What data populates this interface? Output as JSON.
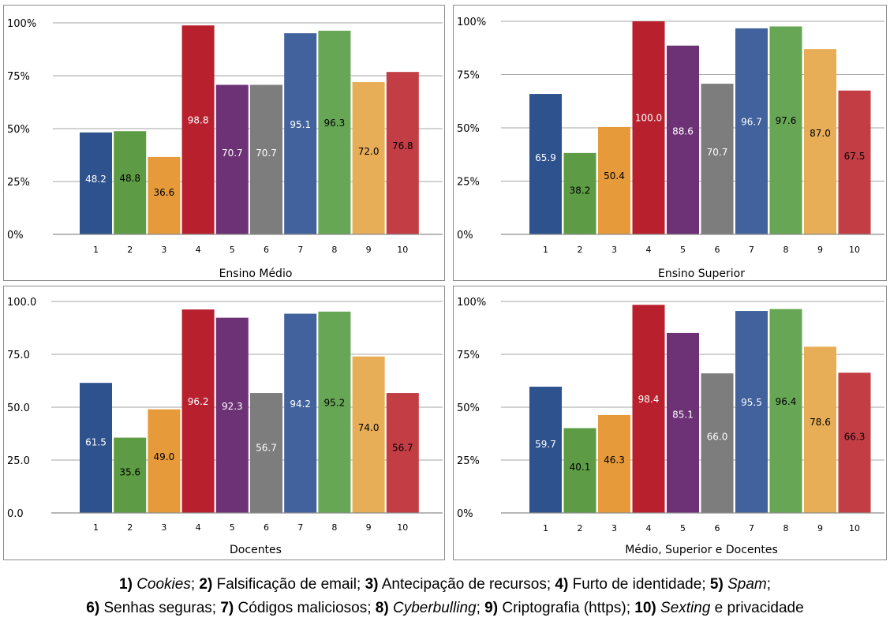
{
  "chart_data": [
    {
      "type": "bar",
      "title": "Ensino Médio",
      "categories": [
        "1",
        "2",
        "3",
        "4",
        "5",
        "6",
        "7",
        "8",
        "9",
        "10"
      ],
      "values": [
        48.2,
        48.8,
        36.6,
        98.8,
        70.7,
        70.7,
        95.1,
        96.3,
        72.0,
        76.8
      ],
      "labels": [
        "48.2",
        "48.8",
        "36.6",
        "98.8",
        "70.7",
        "70.7",
        "95.1",
        "96.3",
        "72.0",
        "76.8"
      ],
      "yticks": [
        "0%",
        "25%",
        "50%",
        "75%",
        "100%"
      ],
      "ylim": [
        0,
        100
      ],
      "grid": true
    },
    {
      "type": "bar",
      "title": "Ensino Superior",
      "categories": [
        "1",
        "2",
        "3",
        "4",
        "5",
        "6",
        "7",
        "8",
        "9",
        "10"
      ],
      "values": [
        65.9,
        38.2,
        50.4,
        100.0,
        88.6,
        70.7,
        96.7,
        97.6,
        87.0,
        67.5
      ],
      "labels": [
        "65.9",
        "38.2",
        "50.4",
        "100.0",
        "88.6",
        "70.7",
        "96.7",
        "97.6",
        "87.0",
        "67.5"
      ],
      "yticks": [
        "0%",
        "25%",
        "50%",
        "75%",
        "100%"
      ],
      "ylim": [
        0,
        100
      ],
      "grid": true
    },
    {
      "type": "bar",
      "title": "Docentes",
      "categories": [
        "1",
        "2",
        "3",
        "4",
        "5",
        "6",
        "7",
        "8",
        "9",
        "10"
      ],
      "values": [
        61.5,
        35.6,
        49.0,
        96.2,
        92.3,
        56.7,
        94.2,
        95.2,
        74.0,
        56.7
      ],
      "labels": [
        "61.5",
        "35.6",
        "49.0",
        "96.2",
        "92.3",
        "56.7",
        "94.2",
        "95.2",
        "74.0",
        "56.7"
      ],
      "yticks": [
        "0.0",
        "25.0",
        "50.0",
        "75.0",
        "100.0"
      ],
      "ylim": [
        0,
        100
      ],
      "grid": true
    },
    {
      "type": "bar",
      "title": "Médio, Superior e Docentes",
      "categories": [
        "1",
        "2",
        "3",
        "4",
        "5",
        "6",
        "7",
        "8",
        "9",
        "10"
      ],
      "values": [
        59.7,
        40.1,
        46.3,
        98.4,
        85.1,
        66.0,
        95.5,
        96.4,
        78.6,
        66.3
      ],
      "labels": [
        "59.7",
        "40.1",
        "46.3",
        "98.4",
        "85.1",
        "66.0",
        "95.5",
        "96.4",
        "78.6",
        "66.3"
      ],
      "yticks": [
        "0%",
        "25%",
        "50%",
        "75%",
        "100%"
      ],
      "ylim": [
        0,
        100
      ],
      "grid": true
    }
  ],
  "colors": [
    "#2e528e",
    "#5d9c44",
    "#e69a3a",
    "#b8202e",
    "#6d3276",
    "#7d7d7d",
    "#41629d",
    "#66a655",
    "#e8ae57",
    "#c23d44"
  ],
  "caption": {
    "items": [
      {
        "num": "1)",
        "text": "Cookies",
        "italic": true,
        "sep": "; "
      },
      {
        "num": "2)",
        "text": "Falsificação de email",
        "italic": false,
        "sep": "; "
      },
      {
        "num": "3)",
        "text": "Antecipação de recursos",
        "italic": false,
        "sep": "; "
      },
      {
        "num": "4)",
        "text": "Furto de identidade",
        "italic": false,
        "sep": "; "
      },
      {
        "num": "5)",
        "text": "Spam",
        "italic": true,
        "sep": ";"
      },
      {
        "num": "6)",
        "text": "Senhas seguras",
        "italic": false,
        "sep": "; "
      },
      {
        "num": "7)",
        "text": "Códigos maliciosos",
        "italic": false,
        "sep": "; "
      },
      {
        "num": "8)",
        "text": "Cyberbulling",
        "italic": true,
        "sep": "; "
      },
      {
        "num": "9)",
        "text": "Criptografia (https)",
        "italic": false,
        "sep": "; "
      },
      {
        "num": "10)",
        "text": "Sexting",
        "italic": true,
        "sep": " "
      },
      {
        "num": "",
        "text": "e privacidade",
        "italic": false,
        "sep": ""
      }
    ]
  }
}
